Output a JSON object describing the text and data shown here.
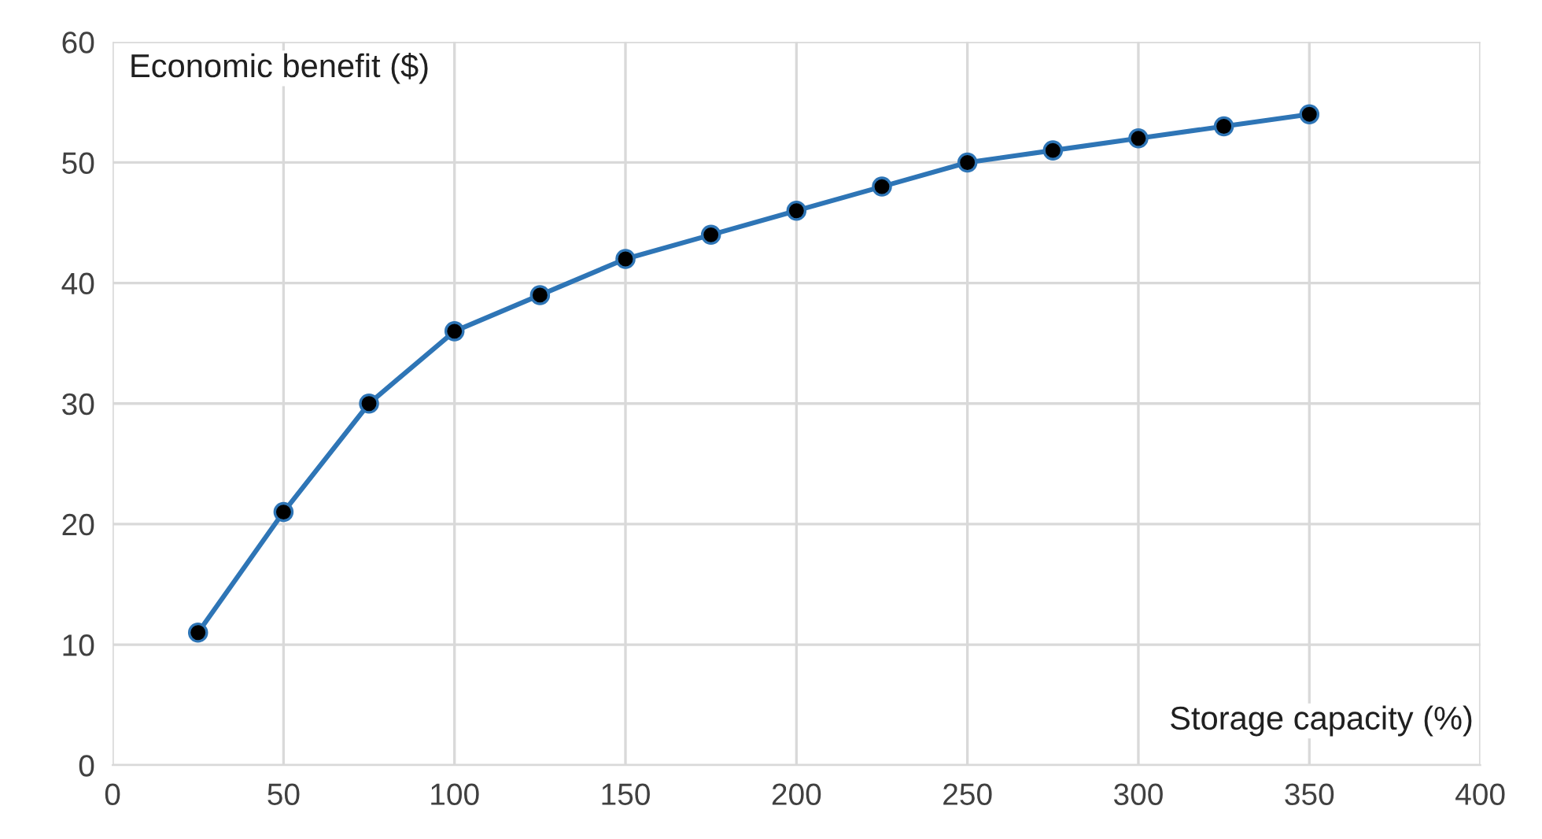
{
  "chart_data": {
    "type": "line",
    "xlabel": "Storage capacity (%)",
    "ylabel": "Economic benefit ($)",
    "x": [
      25,
      50,
      75,
      100,
      125,
      150,
      175,
      200,
      225,
      250,
      275,
      300,
      325,
      350
    ],
    "series": [
      {
        "color": "#2e75b6",
        "values": [
          11,
          21,
          30,
          36,
          39,
          42,
          44,
          46,
          48,
          50,
          51,
          52,
          53,
          54
        ]
      }
    ],
    "xlim": [
      0,
      400
    ],
    "xticks": [
      0,
      50,
      100,
      150,
      200,
      250,
      300,
      350,
      400
    ],
    "ylim": [
      0,
      60
    ],
    "yticks": [
      0,
      10,
      20,
      30,
      40,
      50,
      60
    ],
    "grid": true,
    "marker": "circle",
    "line_style": "solid",
    "legend": false
  }
}
